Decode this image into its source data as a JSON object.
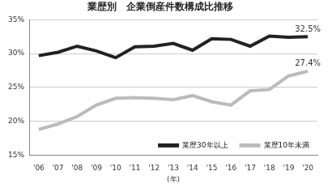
{
  "chart_data": {
    "type": "line",
    "title": "業歴別　企業倒産件数構成比推移",
    "x_label": "(年)",
    "categories": [
      "'06",
      "'07",
      "'08",
      "'09",
      "'10",
      "'11",
      "'12",
      "'13",
      "'14",
      "'15",
      "'16",
      "'17",
      "'18",
      "'19",
      "'20"
    ],
    "series": [
      {
        "name": "業歴30年以上",
        "color": "#222222",
        "values": [
          29.7,
          30.2,
          31.1,
          30.4,
          29.4,
          31.0,
          31.1,
          31.5,
          30.5,
          32.2,
          32.1,
          31.1,
          32.6,
          32.4,
          32.5
        ],
        "value_labels": [
          null,
          null,
          null,
          null,
          null,
          null,
          null,
          null,
          null,
          null,
          null,
          null,
          null,
          null,
          "32.5%"
        ]
      },
      {
        "name": "業歴10年未満",
        "color": "#bbbbbb",
        "values": [
          18.8,
          19.6,
          20.7,
          22.4,
          23.4,
          23.5,
          23.4,
          23.2,
          23.8,
          22.9,
          22.4,
          24.5,
          24.7,
          26.7,
          27.4
        ],
        "value_labels": [
          null,
          null,
          null,
          null,
          null,
          null,
          null,
          null,
          null,
          null,
          null,
          null,
          null,
          null,
          "27.4%"
        ]
      }
    ],
    "ylim": [
      15,
      35
    ],
    "yticks": [
      {
        "value": 15,
        "label": "15%"
      },
      {
        "value": 20,
        "label": "20%"
      },
      {
        "value": 25,
        "label": "25%"
      },
      {
        "value": 30,
        "label": "30%"
      },
      {
        "value": 35,
        "label": "35%"
      }
    ],
    "grid": true,
    "legend": "lower right",
    "data_labels": true
  }
}
